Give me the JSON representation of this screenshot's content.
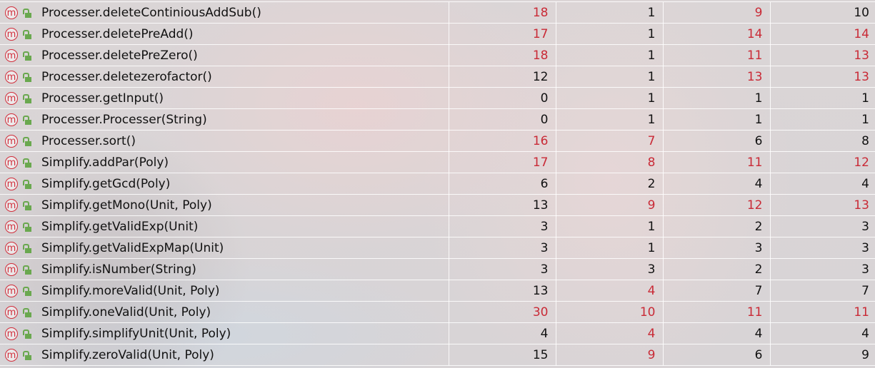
{
  "colors": {
    "alert": "#c92a36",
    "normal": "#111111",
    "method_icon": "#d12d3a",
    "access_icon": "#6aa84f"
  },
  "icons": {
    "method": "method-m-icon",
    "access": "public-unlocked-icon"
  },
  "rows": [
    {
      "name": "Processer.deleteContiniousAddSub()",
      "values": [
        "18",
        "1",
        "9",
        "10"
      ],
      "red": [
        true,
        false,
        true,
        false
      ]
    },
    {
      "name": "Processer.deletePreAdd()",
      "values": [
        "17",
        "1",
        "14",
        "14"
      ],
      "red": [
        true,
        false,
        true,
        true
      ]
    },
    {
      "name": "Processer.deletePreZero()",
      "values": [
        "18",
        "1",
        "11",
        "13"
      ],
      "red": [
        true,
        false,
        true,
        true
      ]
    },
    {
      "name": "Processer.deletezerofactor()",
      "values": [
        "12",
        "1",
        "13",
        "13"
      ],
      "red": [
        false,
        false,
        true,
        true
      ]
    },
    {
      "name": "Processer.getInput()",
      "values": [
        "0",
        "1",
        "1",
        "1"
      ],
      "red": [
        false,
        false,
        false,
        false
      ]
    },
    {
      "name": "Processer.Processer(String)",
      "values": [
        "0",
        "1",
        "1",
        "1"
      ],
      "red": [
        false,
        false,
        false,
        false
      ]
    },
    {
      "name": "Processer.sort()",
      "values": [
        "16",
        "7",
        "6",
        "8"
      ],
      "red": [
        true,
        true,
        false,
        false
      ]
    },
    {
      "name": "Simplify.addPar(Poly)",
      "values": [
        "17",
        "8",
        "11",
        "12"
      ],
      "red": [
        true,
        true,
        true,
        true
      ]
    },
    {
      "name": "Simplify.getGcd(Poly)",
      "values": [
        "6",
        "2",
        "4",
        "4"
      ],
      "red": [
        false,
        false,
        false,
        false
      ]
    },
    {
      "name": "Simplify.getMono(Unit, Poly)",
      "values": [
        "13",
        "9",
        "12",
        "13"
      ],
      "red": [
        false,
        true,
        true,
        true
      ]
    },
    {
      "name": "Simplify.getValidExp(Unit)",
      "values": [
        "3",
        "1",
        "2",
        "3"
      ],
      "red": [
        false,
        false,
        false,
        false
      ]
    },
    {
      "name": "Simplify.getValidExpMap(Unit)",
      "values": [
        "3",
        "1",
        "3",
        "3"
      ],
      "red": [
        false,
        false,
        false,
        false
      ]
    },
    {
      "name": "Simplify.isNumber(String)",
      "values": [
        "3",
        "3",
        "2",
        "3"
      ],
      "red": [
        false,
        false,
        false,
        false
      ]
    },
    {
      "name": "Simplify.moreValid(Unit, Poly)",
      "values": [
        "13",
        "4",
        "7",
        "7"
      ],
      "red": [
        false,
        true,
        false,
        false
      ]
    },
    {
      "name": "Simplify.oneValid(Unit, Poly)",
      "values": [
        "30",
        "10",
        "11",
        "11"
      ],
      "red": [
        true,
        true,
        true,
        true
      ]
    },
    {
      "name": "Simplify.simplifyUnit(Unit, Poly)",
      "values": [
        "4",
        "4",
        "4",
        "4"
      ],
      "red": [
        false,
        true,
        false,
        false
      ]
    },
    {
      "name": "Simplify.zeroValid(Unit, Poly)",
      "values": [
        "15",
        "9",
        "6",
        "9"
      ],
      "red": [
        false,
        true,
        false,
        false
      ]
    }
  ]
}
